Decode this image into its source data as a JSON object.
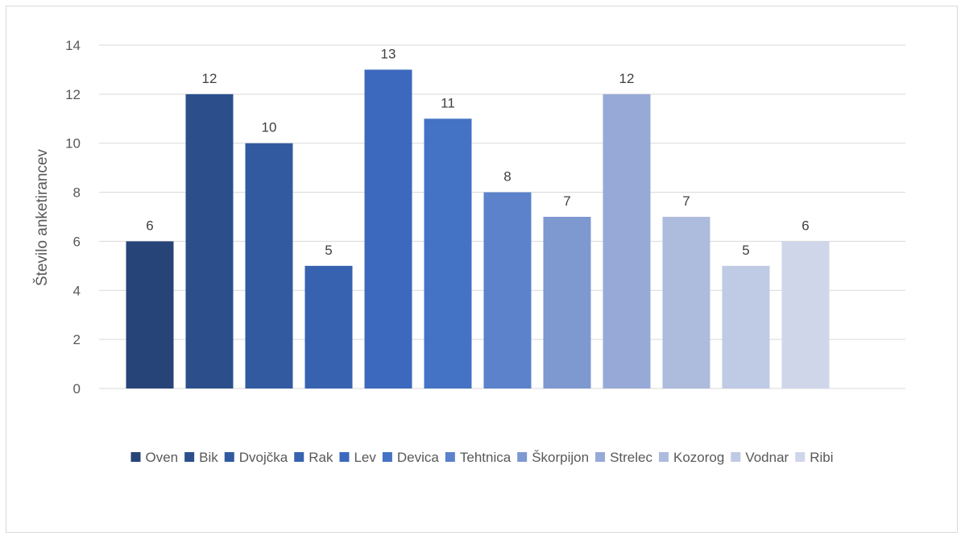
{
  "chart_data": {
    "type": "bar",
    "ylabel": "Število anketirancev",
    "ylim": [
      0,
      14
    ],
    "yticks": [
      0,
      2,
      4,
      6,
      8,
      10,
      12,
      14
    ],
    "grid": true,
    "legend_position": "bottom",
    "series": [
      {
        "name": "Oven",
        "value": 6,
        "color": "#264478"
      },
      {
        "name": "Bik",
        "value": 12,
        "color": "#2c4f8c"
      },
      {
        "name": "Dvojčka",
        "value": 10,
        "color": "#315aa0"
      },
      {
        "name": "Rak",
        "value": 5,
        "color": "#3762b0"
      },
      {
        "name": "Lev",
        "value": 13,
        "color": "#3c69bd"
      },
      {
        "name": "Devica",
        "value": 11,
        "color": "#4472c4"
      },
      {
        "name": "Tehtnica",
        "value": 8,
        "color": "#5b82cb"
      },
      {
        "name": "Škorpijon",
        "value": 7,
        "color": "#7e98d0"
      },
      {
        "name": "Strelec",
        "value": 12,
        "color": "#97a9d6"
      },
      {
        "name": "Kozorog",
        "value": 7,
        "color": "#adbbdd"
      },
      {
        "name": "Vodnar",
        "value": 5,
        "color": "#bfcae4"
      },
      {
        "name": "Ribi",
        "value": 6,
        "color": "#cfd6ea"
      }
    ]
  }
}
